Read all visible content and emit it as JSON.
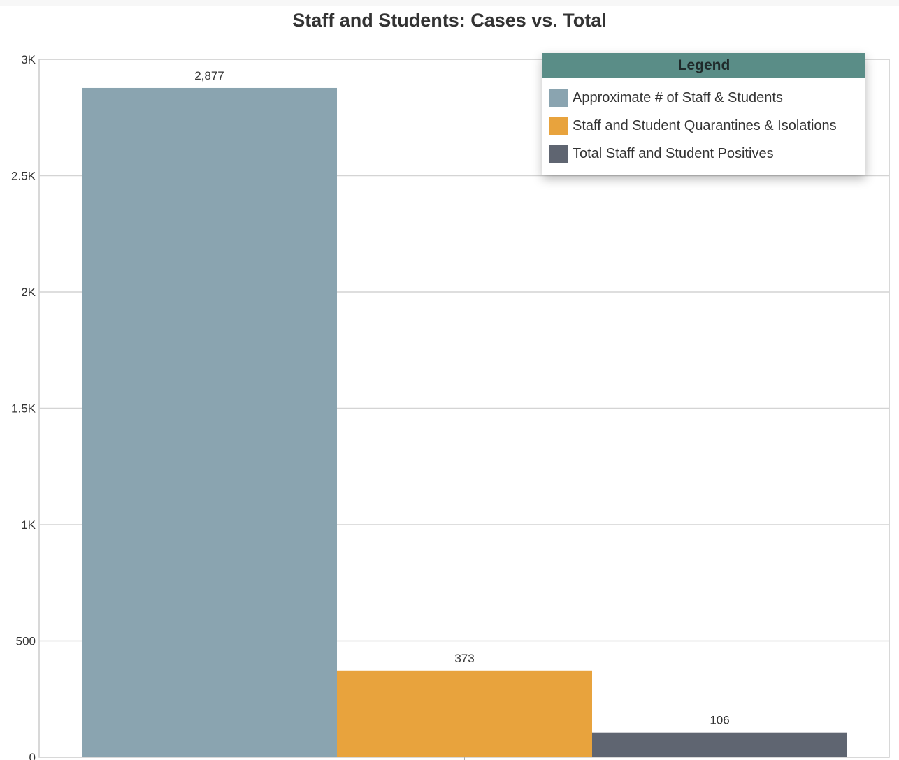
{
  "chart_data": {
    "type": "bar",
    "title": "Staff and Students: Cases vs. Total",
    "xlabel": "",
    "ylabel": "",
    "ylim": [
      0,
      3000
    ],
    "y_ticks": [
      0,
      500,
      1000,
      1500,
      2000,
      2500,
      3000
    ],
    "y_tick_labels": [
      "0",
      "500",
      "1K",
      "1.5K",
      "2K",
      "2.5K",
      "3K"
    ],
    "grid": true,
    "legend_position": "top-right",
    "legend_title": "Legend",
    "series": [
      {
        "name": "Approximate # of Staff & Students",
        "value": 2877,
        "label": "2,877",
        "color": "#8aa4b0"
      },
      {
        "name": "Staff and Student Quarantines & Isolations",
        "value": 373,
        "label": "373",
        "color": "#e8a33d"
      },
      {
        "name": "Total Staff and Student Positives",
        "value": 106,
        "label": "106",
        "color": "#5f6571"
      }
    ]
  }
}
